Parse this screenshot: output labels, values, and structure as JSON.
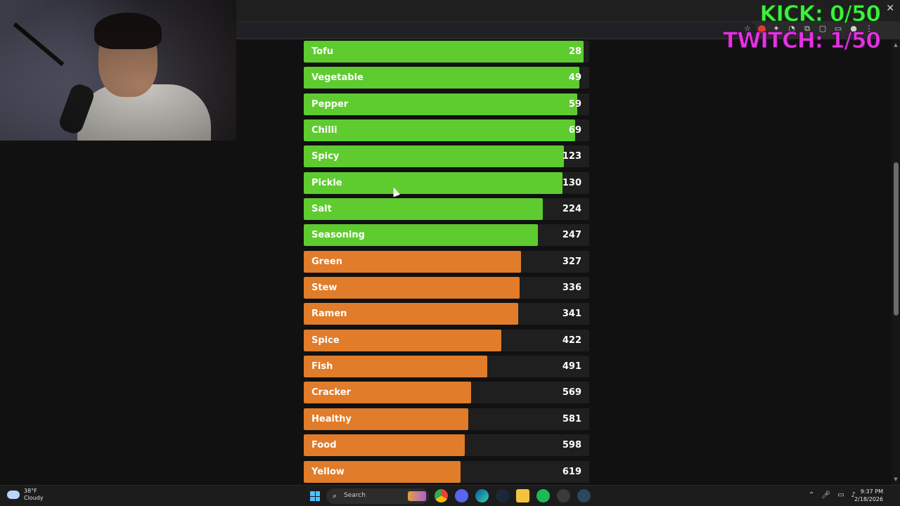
{
  "overlay": {
    "kick": "KICK: 0/50",
    "twitch": "TWITCH: 1/50"
  },
  "colors": {
    "kick": "#3ef03e",
    "twitch": "#e234e2",
    "bar_green": "#5ecb2f",
    "bar_orange": "#e07c2a",
    "track": "#1f1f1f"
  },
  "chart_data": {
    "type": "bar",
    "orientation": "horizontal",
    "title": "",
    "xlabel": "",
    "ylabel": "",
    "xlim": [
      0,
      700
    ],
    "bars": [
      {
        "label": "Tofu",
        "value": 28,
        "group": "green"
      },
      {
        "label": "Vegetable",
        "value": 49,
        "group": "green"
      },
      {
        "label": "Pepper",
        "value": 59,
        "group": "green"
      },
      {
        "label": "Chilli",
        "value": 69,
        "group": "green"
      },
      {
        "label": "Spicy",
        "value": 123,
        "group": "green"
      },
      {
        "label": "Pickle",
        "value": 130,
        "group": "green"
      },
      {
        "label": "Salt",
        "value": 224,
        "group": "green"
      },
      {
        "label": "Seasoning",
        "value": 247,
        "group": "green"
      },
      {
        "label": "Green",
        "value": 327,
        "group": "orange"
      },
      {
        "label": "Stew",
        "value": 336,
        "group": "orange"
      },
      {
        "label": "Ramen",
        "value": 341,
        "group": "orange"
      },
      {
        "label": "Spice",
        "value": 422,
        "group": "orange"
      },
      {
        "label": "Fish",
        "value": 491,
        "group": "orange"
      },
      {
        "label": "Cracker",
        "value": 569,
        "group": "orange"
      },
      {
        "label": "Healthy",
        "value": 581,
        "group": "orange"
      },
      {
        "label": "Food",
        "value": 598,
        "group": "orange"
      },
      {
        "label": "Yellow",
        "value": 619,
        "group": "orange"
      }
    ]
  },
  "taskbar": {
    "weather_temp": "38°F",
    "weather_condition": "Cloudy",
    "search_label": "Search",
    "time": "9:37 PM",
    "date": "2/18/2026"
  }
}
